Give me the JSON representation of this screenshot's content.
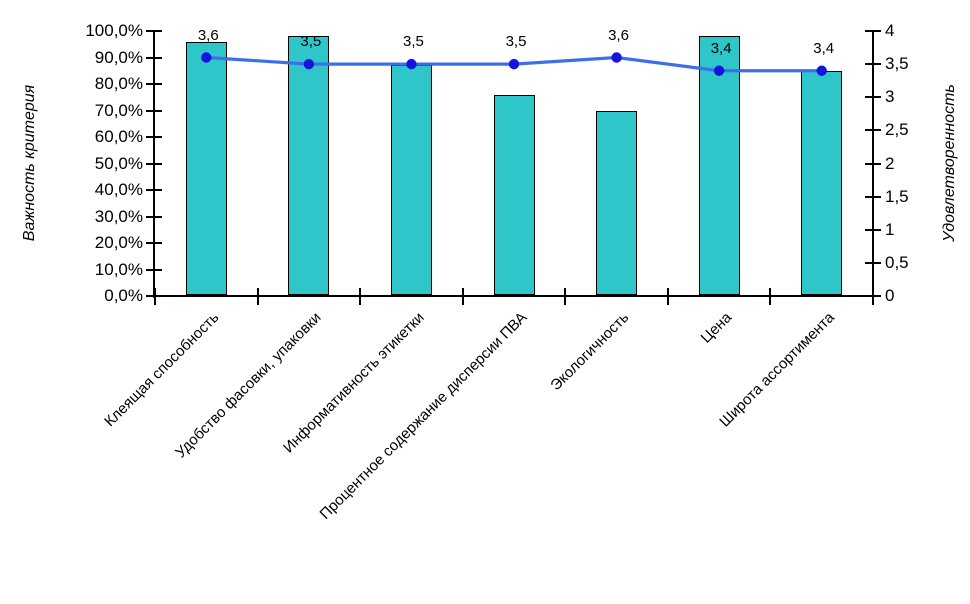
{
  "chart_data": {
    "type": "bar",
    "combo": "bar+line",
    "title": "",
    "categories": [
      "Клеящая способность",
      "Удобство фасовки, упаковки",
      "Информативность этикетки",
      "Процентное содержание дисперсии ПВА",
      "Экологичность",
      "Цена",
      "Широта ассортимента"
    ],
    "series": [
      {
        "name": "Важность критерия",
        "type": "bar",
        "axis": "left",
        "values": [
          96,
          98,
          87,
          76,
          70,
          98,
          85
        ],
        "unit": "%"
      },
      {
        "name": "Удовлетворенность",
        "type": "line",
        "axis": "right",
        "values": [
          3.6,
          3.5,
          3.5,
          3.5,
          3.6,
          3.4,
          3.4
        ],
        "point_labels": [
          "3,6",
          "3,5",
          "3,5",
          "3,5",
          "3,6",
          "3,4",
          "3,4"
        ]
      }
    ],
    "left_axis": {
      "title": "Важность критерия",
      "min": 0,
      "max": 100,
      "step": 10,
      "tick_labels": [
        "0,0%",
        "10,0%",
        "20,0%",
        "30,0%",
        "40,0%",
        "50,0%",
        "60,0%",
        "70,0%",
        "80,0%",
        "90,0%",
        "100,0%"
      ]
    },
    "right_axis": {
      "title": "Удовлетворенность",
      "min": 0,
      "max": 4,
      "step": 0.5,
      "tick_labels": [
        "0",
        "0,5",
        "1",
        "1,5",
        "2",
        "2,5",
        "3",
        "3,5",
        "4"
      ]
    },
    "grid": false,
    "legend": "none",
    "colors": {
      "bar_fill": "#2FC6C9",
      "bar_border": "#000000",
      "line": "#3E6FEB",
      "marker": "#1414DD",
      "text": "#000000",
      "background": "#FFFFFF"
    }
  }
}
